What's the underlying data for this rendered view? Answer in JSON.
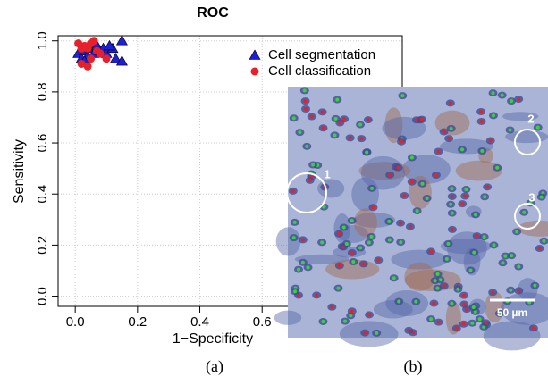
{
  "chart_data": {
    "type": "scatter",
    "title": "ROC",
    "x_label": "1−Specificity",
    "y_label": "Sensitivity",
    "xlim": [
      -0.055,
      1.05
    ],
    "ylim": [
      -0.04,
      1.02
    ],
    "xticks": [
      {
        "value": 0,
        "label": "0.0"
      },
      {
        "value": 0.2,
        "label": "0.2"
      },
      {
        "value": 0.4,
        "label": "0.4"
      },
      {
        "value": 0.6,
        "label": "0.6"
      }
    ],
    "yticks": [
      {
        "value": 0,
        "label": "0.0"
      },
      {
        "value": 0.2,
        "label": "0.2"
      },
      {
        "value": 0.4,
        "label": "0.4"
      },
      {
        "value": 0.6,
        "label": "0.6"
      },
      {
        "value": 0.8,
        "label": "0.8"
      },
      {
        "value": 1,
        "label": "1.0"
      }
    ],
    "grid": true,
    "legend": "top-right",
    "series": [
      {
        "name": "Cell segmentation",
        "color": "#1f1fd6",
        "marker": "triangle",
        "x": [
          0.01,
          0.02,
          0.03,
          0.04,
          0.05,
          0.06,
          0.07,
          0.08,
          0.09,
          0.1,
          0.12,
          0.13,
          0.15,
          0.15,
          0.03,
          0.11
        ],
        "values": [
          0.95,
          0.93,
          0.96,
          0.94,
          0.97,
          0.95,
          0.98,
          0.96,
          0.97,
          0.95,
          0.97,
          0.93,
          0.92,
          1.0,
          0.92,
          0.98
        ]
      },
      {
        "name": "Cell classification",
        "color": "#e8202a",
        "marker": "circle",
        "x": [
          0.01,
          0.02,
          0.03,
          0.04,
          0.05,
          0.06,
          0.04,
          0.07,
          0.08,
          0.1,
          0.02,
          0.05
        ],
        "values": [
          0.99,
          0.91,
          0.98,
          0.97,
          0.99,
          1.0,
          0.9,
          0.96,
          0.95,
          0.93,
          0.97,
          0.93
        ]
      }
    ]
  },
  "image": {
    "labels": [
      "1",
      "2",
      "3"
    ],
    "scale_bar": "50 µm"
  },
  "captions": [
    "(a)",
    "(b)"
  ]
}
